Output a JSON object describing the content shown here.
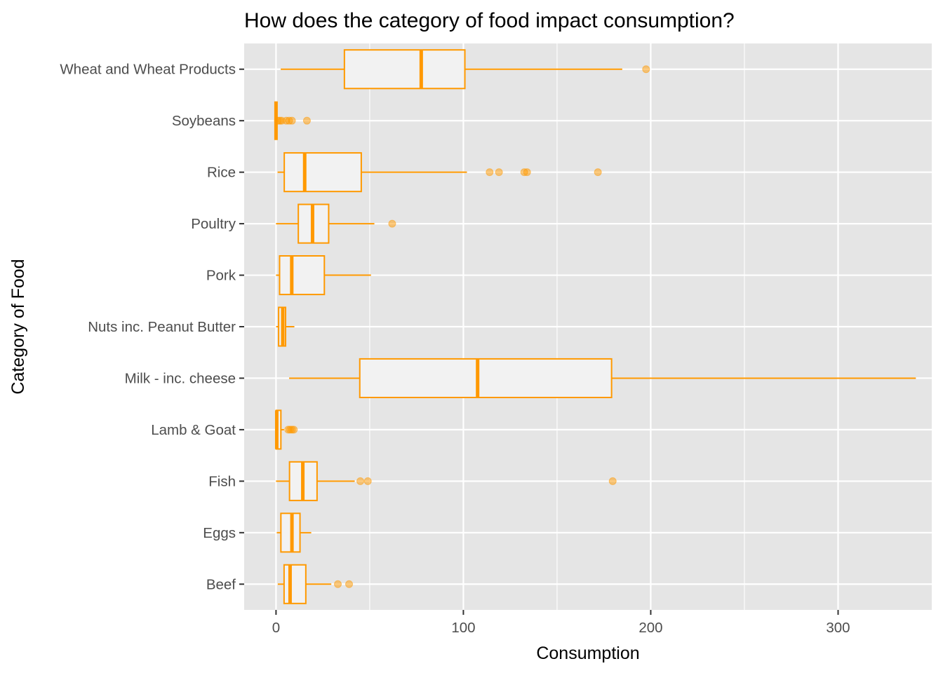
{
  "chart_data": {
    "type": "boxplot",
    "orientation": "horizontal",
    "title": "How does the category of food impact consumption?",
    "xlabel": "Consumption",
    "ylabel": "Category of Food",
    "xlim": [
      -17,
      350
    ],
    "x_ticks": [
      0,
      100,
      200,
      300
    ],
    "grid": true,
    "colors": {
      "panel_background": "#e5e5e5",
      "grid": "#ffffff",
      "box_stroke": "#ff9900",
      "box_fill": "#f2f2f2",
      "outlier": "#ff9900"
    },
    "categories": [
      {
        "name": "Beef",
        "whisker_low": 0.9,
        "q1": 4.3,
        "median": 7.5,
        "q3": 15.9,
        "whisker_high": 29.5,
        "outliers": [
          33.0,
          39.0
        ]
      },
      {
        "name": "Eggs",
        "whisker_low": 0.4,
        "q1": 2.6,
        "median": 8.5,
        "q3": 12.8,
        "whisker_high": 18.8,
        "outliers": []
      },
      {
        "name": "Fish",
        "whisker_low": 0.0,
        "q1": 7.2,
        "median": 14.3,
        "q3": 21.9,
        "whisker_high": 42.0,
        "outliers": [
          45.0,
          49.0,
          179.7
        ]
      },
      {
        "name": "Lamb & Goat",
        "whisker_low": 0.0,
        "q1": 0.1,
        "median": 0.4,
        "q3": 2.6,
        "whisker_high": 4.3,
        "outliers": [
          6.5,
          7.5,
          8.5,
          9.5
        ]
      },
      {
        "name": "Milk - inc. cheese",
        "whisker_low": 7.0,
        "q1": 44.7,
        "median": 107.6,
        "q3": 179.1,
        "whisker_high": 341.5,
        "outliers": []
      },
      {
        "name": "Nuts inc. Peanut Butter",
        "whisker_low": 0.1,
        "q1": 1.4,
        "median": 3.6,
        "q3": 5.1,
        "whisker_high": 9.8,
        "outliers": []
      },
      {
        "name": "Pork",
        "whisker_low": 0.0,
        "q1": 1.9,
        "median": 8.4,
        "q3": 25.8,
        "whisker_high": 50.7,
        "outliers": []
      },
      {
        "name": "Poultry",
        "whisker_low": 0.0,
        "q1": 11.9,
        "median": 19.5,
        "q3": 28.1,
        "whisker_high": 52.5,
        "outliers": [
          62.0
        ]
      },
      {
        "name": "Rice",
        "whisker_low": 0.8,
        "q1": 4.4,
        "median": 15.3,
        "q3": 45.5,
        "whisker_high": 101.9,
        "outliers": [
          114.0,
          119.0,
          132.5,
          134.0,
          171.8
        ]
      },
      {
        "name": "Soybeans",
        "whisker_low": 0.0,
        "q1": 0.0,
        "median": 0.0,
        "q3": 0.0,
        "whisker_high": 0.0,
        "outliers": [
          1.0,
          2.0,
          3.0,
          5.5,
          7.0,
          8.5,
          16.5
        ]
      },
      {
        "name": "Wheat and Wheat Products",
        "whisker_low": 2.5,
        "q1": 36.5,
        "median": 77.5,
        "q3": 100.8,
        "whisker_high": 184.8,
        "outliers": [
          197.5
        ]
      }
    ]
  }
}
